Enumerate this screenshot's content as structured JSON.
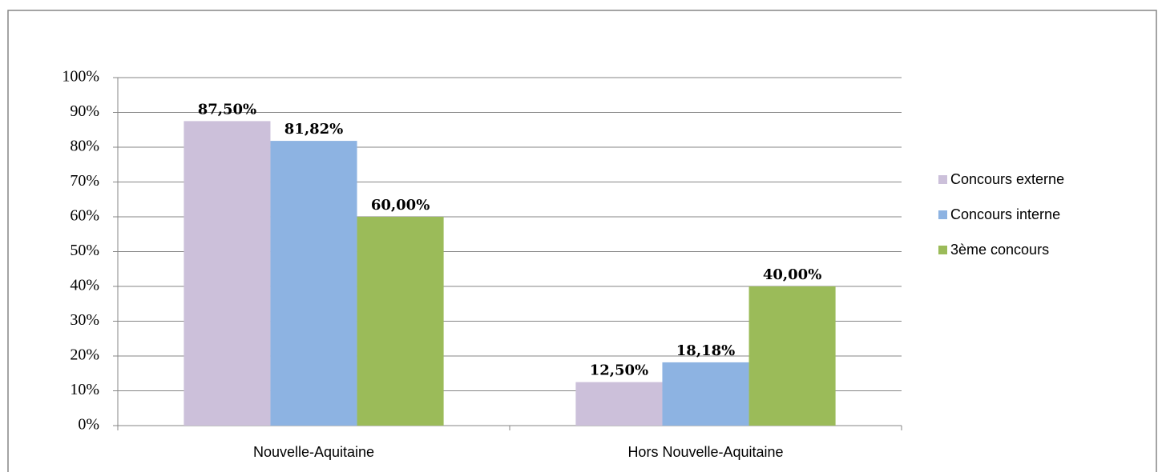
{
  "chart_data": {
    "type": "bar",
    "categories": [
      "Nouvelle-Aquitaine",
      "Hors Nouvelle-Aquitaine"
    ],
    "series": [
      {
        "name": "Concours externe",
        "color": "#ccc0da",
        "values": [
          87.5,
          12.5
        ],
        "value_labels": [
          "87,50%",
          "12,50%"
        ]
      },
      {
        "name": "Concours interne",
        "color": "#8db3e2",
        "values": [
          81.82,
          18.18
        ],
        "value_labels": [
          "81,82%",
          "18,18%"
        ]
      },
      {
        "name": "3ème concours",
        "color": "#9bbb59",
        "values": [
          60,
          40
        ],
        "value_labels": [
          "60,00%",
          "40,00%"
        ]
      }
    ],
    "ylim": [
      0,
      100
    ],
    "yticks": [
      {
        "value": 0,
        "label": "0%"
      },
      {
        "value": 10,
        "label": "10%"
      },
      {
        "value": 20,
        "label": "20%"
      },
      {
        "value": 30,
        "label": "30%"
      },
      {
        "value": 40,
        "label": "40%"
      },
      {
        "value": 50,
        "label": "50%"
      },
      {
        "value": 60,
        "label": "60%"
      },
      {
        "value": 70,
        "label": "70%"
      },
      {
        "value": 80,
        "label": "80%"
      },
      {
        "value": 90,
        "label": "90%"
      },
      {
        "value": 100,
        "label": "100%"
      }
    ],
    "grid": true,
    "legend": "right"
  }
}
